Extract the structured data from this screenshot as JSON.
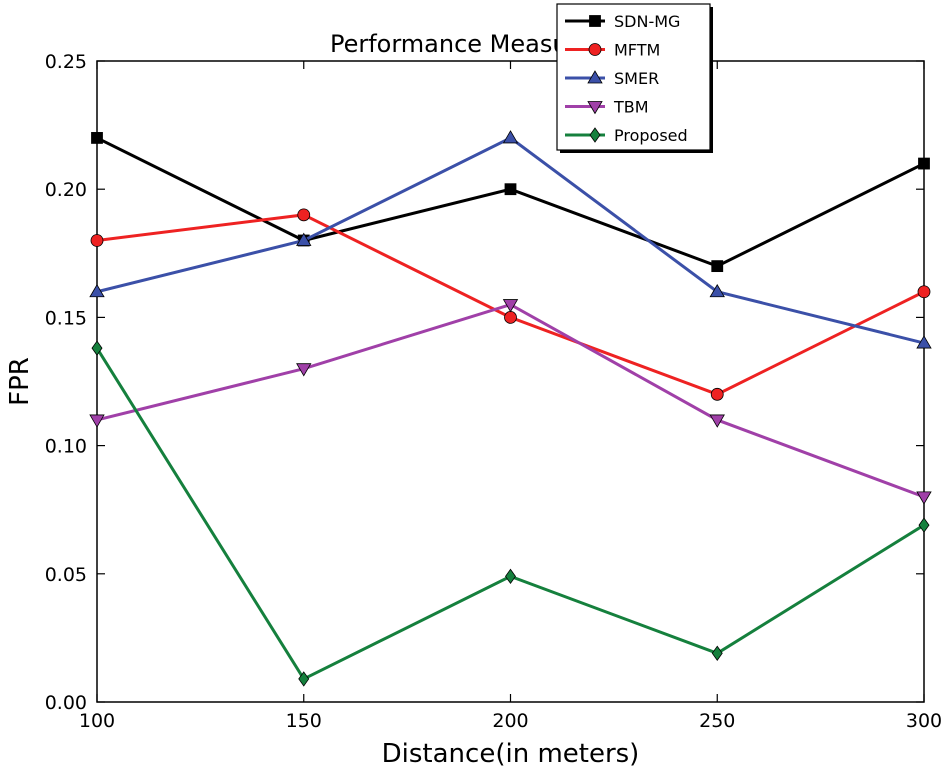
{
  "chart_data": {
    "type": "line",
    "title": "Performance Measure of FPR",
    "xlabel": "Distance(in meters)",
    "ylabel": "FPR",
    "x": [
      100,
      150,
      200,
      250,
      300
    ],
    "xlim": [
      100,
      300
    ],
    "ylim": [
      0,
      0.25
    ],
    "xticks": [
      100,
      150,
      200,
      250,
      300
    ],
    "yticks": [
      "0.00",
      "0.05",
      "0.10",
      "0.15",
      "0.20",
      "0.25"
    ],
    "grid": false,
    "legend_position": "top-center",
    "series": [
      {
        "name": "SDN-MG",
        "color": "#000000",
        "marker": "square",
        "values": [
          0.22,
          0.18,
          0.2,
          0.17,
          0.21
        ]
      },
      {
        "name": "MFTM",
        "color": "#ee2222",
        "marker": "circle",
        "values": [
          0.18,
          0.19,
          0.15,
          0.12,
          0.16
        ]
      },
      {
        "name": "SMER",
        "color": "#3b50a8",
        "marker": "triangle-up",
        "values": [
          0.16,
          0.18,
          0.22,
          0.16,
          0.14
        ]
      },
      {
        "name": "TBM",
        "color": "#a040a8",
        "marker": "triangle-down",
        "values": [
          0.11,
          0.13,
          0.155,
          0.11,
          0.08
        ]
      },
      {
        "name": "Proposed",
        "color": "#15803d",
        "marker": "diamond",
        "values": [
          0.138,
          0.009,
          0.049,
          0.019,
          0.069
        ]
      }
    ]
  }
}
